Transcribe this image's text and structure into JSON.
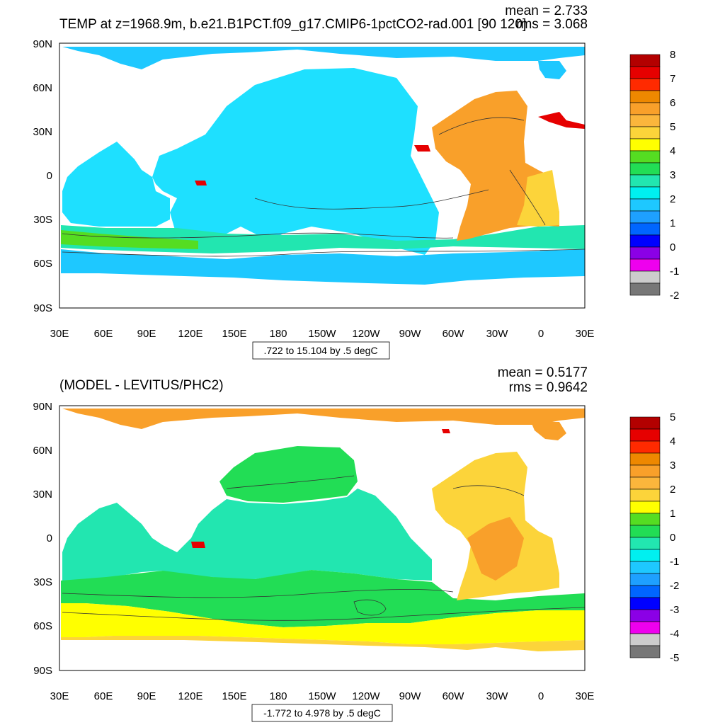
{
  "panels": [
    {
      "title": "TEMP at z=1968.9m, b.e21.B1PCT.f09_g17.CMIP6-1pctCO2-rad.001 [90 120]",
      "stat_mean": "mean = 2.733",
      "stat_rms": "rms = 3.068",
      "lat_labels": [
        "90N",
        "60N",
        "30N",
        "0",
        "30S",
        "60S",
        "90S"
      ],
      "lon_labels": [
        "30E",
        "60E",
        "90E",
        "120E",
        "150E",
        "180",
        "150W",
        "120W",
        "90W",
        "60W",
        "30W",
        "0",
        "30E"
      ],
      "contour_info": ".722 to 15.104 by .5 degC",
      "colorbar": {
        "labels": [
          "8",
          "7",
          "6",
          "5",
          "4",
          "3",
          "2",
          "1",
          "0",
          "-1",
          "-2"
        ],
        "colors": [
          "#b30000",
          "#e60000",
          "#ff2a00",
          "#ee8800",
          "#f9a02a",
          "#fbb63c",
          "#fcd43a",
          "#ffff00",
          "#55dd22",
          "#22dd55",
          "#22e6b0",
          "#00f0f0",
          "#1ec8ff",
          "#1ea0ff",
          "#0066ff",
          "#0000ff",
          "#8b00e6",
          "#ee00ee",
          "#cccccc",
          "#777777"
        ]
      }
    },
    {
      "title": "(MODEL - LEVITUS/PHC2)",
      "stat_mean": "mean = 0.5177",
      "stat_rms": "rms = 0.9642",
      "lat_labels": [
        "90N",
        "60N",
        "30N",
        "0",
        "30S",
        "60S",
        "90S"
      ],
      "lon_labels": [
        "30E",
        "60E",
        "90E",
        "120E",
        "150E",
        "180",
        "150W",
        "120W",
        "90W",
        "60W",
        "30W",
        "0",
        "30E"
      ],
      "contour_info": "-1.772 to 4.978 by .5 degC",
      "colorbar": {
        "labels": [
          "5",
          "4",
          "3",
          "2",
          "1",
          "0",
          "-1",
          "-2",
          "-3",
          "-4",
          "-5"
        ],
        "colors": [
          "#b30000",
          "#e60000",
          "#ff2a00",
          "#ee8800",
          "#f9a02a",
          "#fbb63c",
          "#fcd43a",
          "#ffff00",
          "#55dd22",
          "#22dd55",
          "#22e6b0",
          "#00f0f0",
          "#1ec8ff",
          "#1ea0ff",
          "#0066ff",
          "#0000ff",
          "#8b00e6",
          "#ee00ee",
          "#cccccc",
          "#777777"
        ]
      }
    }
  ],
  "field_colors": {
    "p1_pacific": "#1ee0ff",
    "p1_indian": "#1ee0ff",
    "p1_southern_band": "#22e6b0",
    "p1_acc_green": "#55dd22",
    "p1_antarctic": "#1ec8ff",
    "p1_arctic": "#1ec8ff",
    "p1_atlantic": "#f9a02a",
    "p1_south_atlantic": "#fcd43a",
    "p1_med": "#e60000",
    "p2_arctic": "#f9a02a",
    "p2_pacific_north": "#22dd55",
    "p2_tropical": "#22e6b0",
    "p2_southern": "#22dd55",
    "p2_south_yellow": "#ffff00",
    "p2_south_orange": "#fcd43a",
    "p2_atlantic": "#fcd43a",
    "p2_atl_orange": "#f9a02a",
    "p2_med": "#e60000",
    "land": "#ffffff",
    "contour": "#333333"
  }
}
